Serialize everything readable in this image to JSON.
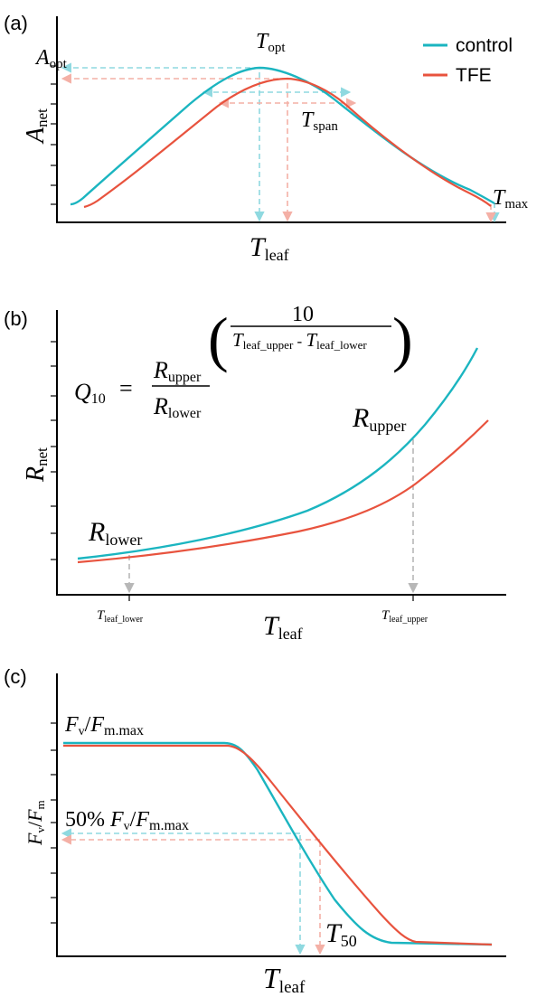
{
  "colors": {
    "control": "#1bb5c0",
    "tfe": "#e8533e",
    "guide_grey": "#b7b7b7"
  },
  "panel_a": {
    "label": "(a)",
    "y_axis": {
      "main": "A",
      "sub": "net"
    },
    "x_axis": {
      "main": "T",
      "sub": "leaf"
    },
    "aopt": {
      "main": "A",
      "sub": "opt"
    },
    "topt": {
      "main": "T",
      "sub": "opt"
    },
    "tspan": {
      "main": "T",
      "sub": "span"
    },
    "tmax": {
      "main": "T",
      "sub": "max"
    },
    "legend": {
      "control": "control",
      "tfe": "TFE"
    }
  },
  "panel_b": {
    "label": "(b)",
    "y_axis": {
      "main": "R",
      "sub": "net"
    },
    "x_axis": {
      "main": "T",
      "sub": "leaf"
    },
    "formula": {
      "lhs_main": "Q",
      "lhs_sub": "10",
      "equals": "=",
      "num_main": "R",
      "num_sub": "upper",
      "den_main": "R",
      "den_sub": "lower",
      "exp_num": "10",
      "exp_den_a_main": "T",
      "exp_den_a_sub": "leaf_upper",
      "exp_den_minus": "-",
      "exp_den_b_main": "T",
      "exp_den_b_sub": "leaf_lower"
    },
    "rupper": {
      "main": "R",
      "sub": "upper"
    },
    "rlower": {
      "main": "R",
      "sub": "lower"
    },
    "tick_lower": {
      "main": "T",
      "sub": "leaf_lower"
    },
    "tick_upper": {
      "main": "T",
      "sub": "leaf_upper"
    }
  },
  "panel_c": {
    "label": "(c)",
    "y_axis": {
      "a_main": "F",
      "a_sub": "v",
      "slash": "/",
      "b_main": "F",
      "b_sub": "m"
    },
    "x_axis": {
      "main": "T",
      "sub": "leaf"
    },
    "fmax": {
      "a_main": "F",
      "a_sub": "v",
      "slash": "/",
      "b_main": "F",
      "b_sub": "m.max"
    },
    "half": {
      "prefix": "50% ",
      "a_main": "F",
      "a_sub": "v",
      "slash": "/",
      "b_main": "F",
      "b_sub": "m.max"
    },
    "t50": {
      "main": "T",
      "sub": "50"
    }
  }
}
